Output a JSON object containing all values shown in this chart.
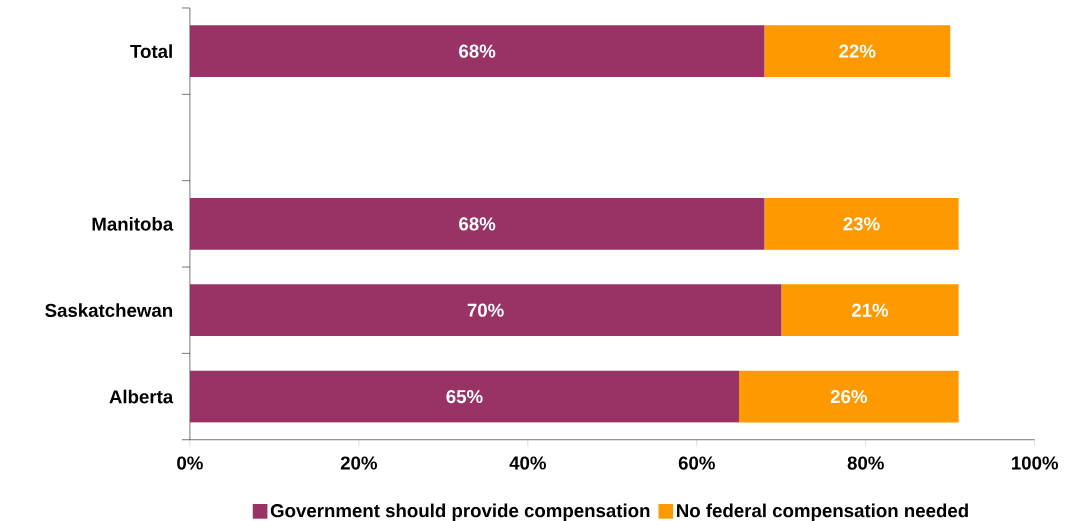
{
  "chart_data": {
    "type": "bar",
    "orientation": "horizontal",
    "stacked": true,
    "categories": [
      "Total",
      null,
      "Manitoba",
      "Saskatchewan",
      "Alberta"
    ],
    "series": [
      {
        "name": "Government should provide compensation",
        "color": "#993366",
        "values": [
          68,
          null,
          68,
          70,
          65
        ],
        "value_labels": [
          "68%",
          null,
          "68%",
          "70%",
          "65%"
        ]
      },
      {
        "name": "No federal compensation needed",
        "color": "#ff9900",
        "values": [
          22,
          null,
          23,
          21,
          26
        ],
        "value_labels": [
          "22%",
          null,
          "23%",
          "21%",
          "26%"
        ]
      }
    ],
    "xlim": [
      0,
      100
    ],
    "xticks": [
      {
        "value": 0,
        "label": "0%"
      },
      {
        "value": 20,
        "label": "20%"
      },
      {
        "value": 40,
        "label": "40%"
      },
      {
        "value": 60,
        "label": "60%"
      },
      {
        "value": 80,
        "label": "80%"
      },
      {
        "value": 100,
        "label": "100%"
      }
    ],
    "legend": "bottom",
    "grid": false
  }
}
